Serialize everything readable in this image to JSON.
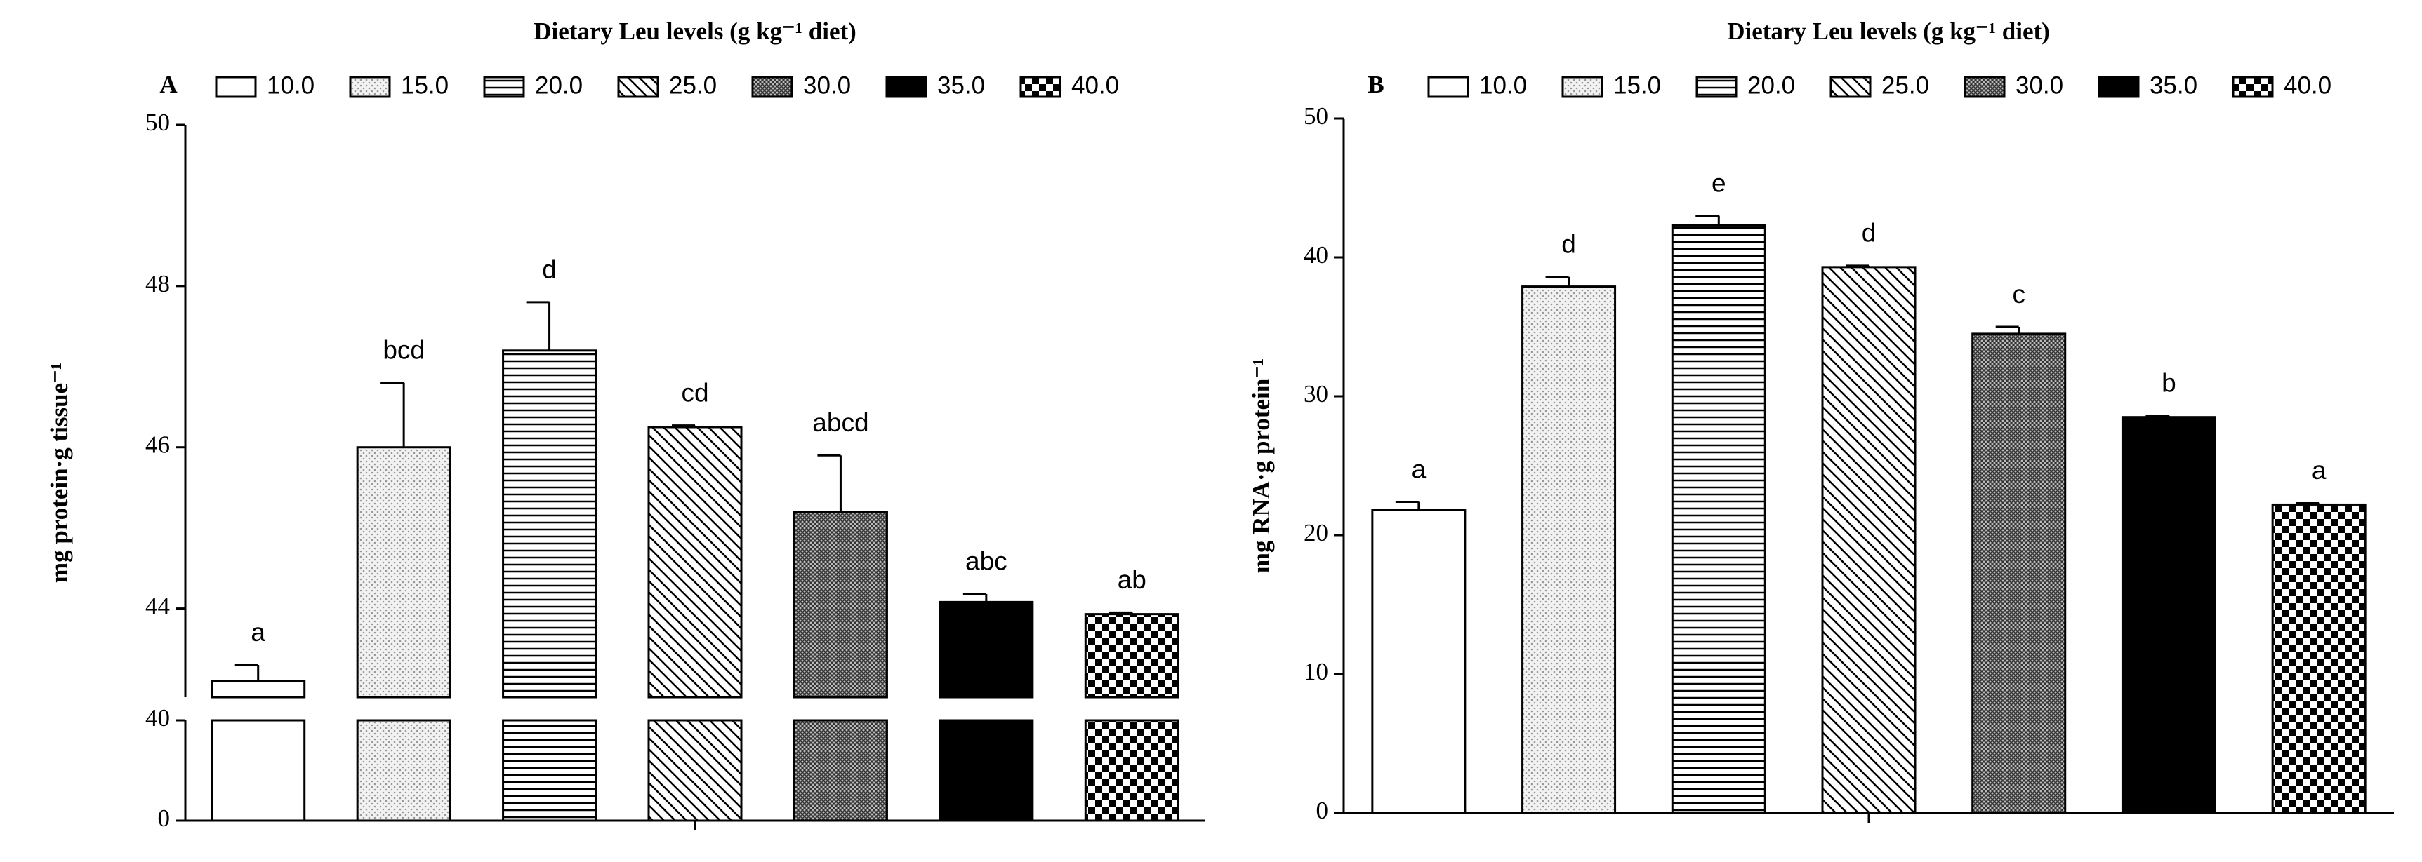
{
  "chart_data": [
    {
      "type": "bar",
      "panel": "A",
      "title": "Dietary Leu levels (g kg⁻¹ diet)",
      "ylabel": "mg protein·g tissue⁻¹",
      "categories": [
        "10.0",
        "15.0",
        "20.0",
        "25.0",
        "30.0",
        "35.0",
        "40.0"
      ],
      "values": [
        43.1,
        46.0,
        47.2,
        46.25,
        45.2,
        44.08,
        43.93
      ],
      "errors": [
        0.2,
        0.8,
        0.6,
        0.02,
        0.7,
        0.1,
        0.02
      ],
      "labels": [
        "a",
        "bcd",
        "d",
        "cd",
        "abcd",
        "abc",
        "ab"
      ],
      "ylim": [
        0,
        50
      ],
      "axis_break": [
        40,
        42.9
      ],
      "yticks": [
        0,
        40,
        44,
        46,
        48,
        50
      ]
    },
    {
      "type": "bar",
      "panel": "B",
      "title": "Dietary Leu levels (g kg⁻¹ diet)",
      "ylabel": "mg RNA·g protein⁻¹",
      "categories": [
        "10.0",
        "15.0",
        "20.0",
        "25.0",
        "30.0",
        "35.0",
        "40.0"
      ],
      "values": [
        21.8,
        37.9,
        42.3,
        39.3,
        34.5,
        28.5,
        22.2
      ],
      "errors": [
        0.6,
        0.7,
        0.7,
        0.1,
        0.5,
        0.1,
        0.1
      ],
      "labels": [
        "a",
        "d",
        "e",
        "d",
        "c",
        "b",
        "a"
      ],
      "ylim": [
        0,
        50
      ],
      "yticks": [
        0,
        10,
        20,
        30,
        40,
        50
      ]
    }
  ]
}
